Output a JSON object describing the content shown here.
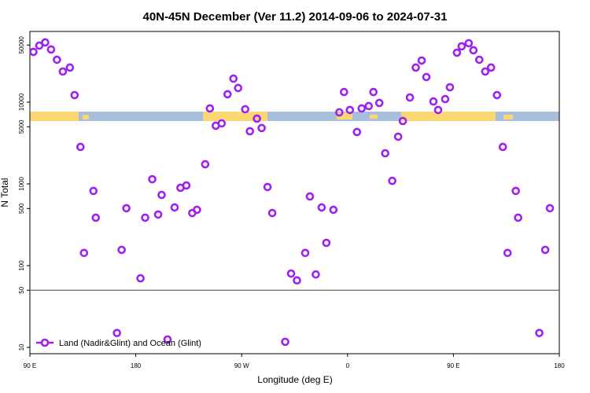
{
  "chart_data": {
    "type": "scatter",
    "title": "40N-45N December (Ver 11.2)   2014-09-06 to 2024-07-31",
    "x_label": "Longitude (deg E)",
    "y_label": "N Total",
    "log_y": true,
    "xlim": [
      90,
      540
    ],
    "xticks": [
      {
        "value": 90,
        "label": "90 E"
      },
      {
        "value": 180,
        "label": "180"
      },
      {
        "value": 270,
        "label": "90 W"
      },
      {
        "value": 360,
        "label": "0"
      },
      {
        "value": 450,
        "label": "90 E"
      },
      {
        "value": 540,
        "label": "180"
      }
    ],
    "ylim": [
      8.37,
      73300
    ],
    "yticks": [
      10,
      50,
      100,
      500,
      1000,
      5000,
      10000,
      50000
    ],
    "reference_line": 50,
    "legend": "bottom-left",
    "series": [
      {
        "name": "Land (Nadir&Glint) and Ocean (Glint)",
        "color": "#a020f0",
        "x": [
          93,
          98,
          103,
          108,
          113,
          118,
          124,
          128,
          133,
          136,
          144,
          146,
          164,
          168,
          172,
          184,
          188,
          194,
          199,
          202,
          207,
          213,
          218,
          223,
          228,
          232,
          239,
          243,
          248,
          253,
          258,
          263,
          267,
          273,
          277,
          283,
          287,
          292,
          296,
          307,
          312,
          317,
          324,
          328,
          333,
          338,
          342,
          348,
          353,
          357,
          362,
          368,
          372,
          378,
          382,
          387,
          392,
          398,
          403,
          407,
          413,
          418,
          423,
          427,
          433,
          437,
          443,
          447,
          453,
          457,
          463,
          467,
          472,
          477,
          482,
          487,
          492,
          496,
          503,
          505,
          523,
          528,
          532
        ],
        "values": [
          41200,
          49200,
          53800,
          44100,
          33000,
          23700,
          26500,
          12200,
          2830,
          143,
          820,
          386,
          15,
          156,
          504,
          70,
          386,
          1140,
          422,
          733,
          12.5,
          515,
          895,
          957,
          440,
          482,
          1740,
          8380,
          5150,
          5500,
          12500,
          19400,
          14900,
          8190,
          4410,
          6280,
          4820,
          916,
          440,
          11.7,
          80,
          66,
          143,
          702,
          78,
          515,
          190,
          482,
          7500,
          13300,
          8020,
          4310,
          8380,
          8950,
          13300,
          9780,
          2370,
          1090,
          3780,
          5880,
          11400,
          26500,
          32300,
          20300,
          10200,
          8020,
          10900,
          15200,
          40300,
          48200,
          52600,
          43100,
          33000,
          23700,
          26500,
          12200,
          2830,
          143,
          820,
          386,
          15,
          156,
          504
        ]
      }
    ]
  }
}
